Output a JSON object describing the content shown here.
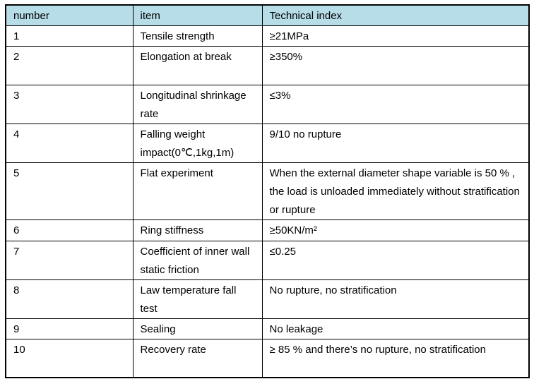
{
  "table": {
    "headers": {
      "number": "number",
      "item": "item",
      "index": "Technical index"
    },
    "rows": [
      {
        "number": "1",
        "item": "Tensile strength",
        "index": "≥21MPa"
      },
      {
        "number": "2",
        "item": "Elongation at break",
        "index": "≥350%"
      },
      {
        "number": "3",
        "item": "Longitudinal shrinkage rate",
        "index": "≤3%"
      },
      {
        "number": "4",
        "item": "Falling weight impact(0℃,1kg,1m)",
        "index": "9/10 no rupture"
      },
      {
        "number": "5",
        "item": "Flat experiment",
        "index": "When the external diameter shape variable is 50 % , the load is unloaded immediately without stratification or rupture"
      },
      {
        "number": "6",
        "item": "Ring stiffness",
        "index": "≥50KN/m²"
      },
      {
        "number": "7",
        "item": "Coefficient of inner wall static friction",
        "index": "≤0.25"
      },
      {
        "number": "8",
        "item": "Law temperature fall test",
        "index": "No rupture, no stratification"
      },
      {
        "number": "9",
        "item": "Sealing",
        "index": "No leakage"
      },
      {
        "number": "10",
        "item": "Recovery rate",
        "index": "≥ 85 %  and there’s no rupture, no stratification"
      }
    ]
  },
  "colors": {
    "header_bg": "#b6dde8",
    "border": "#000000",
    "text": "#000000"
  }
}
